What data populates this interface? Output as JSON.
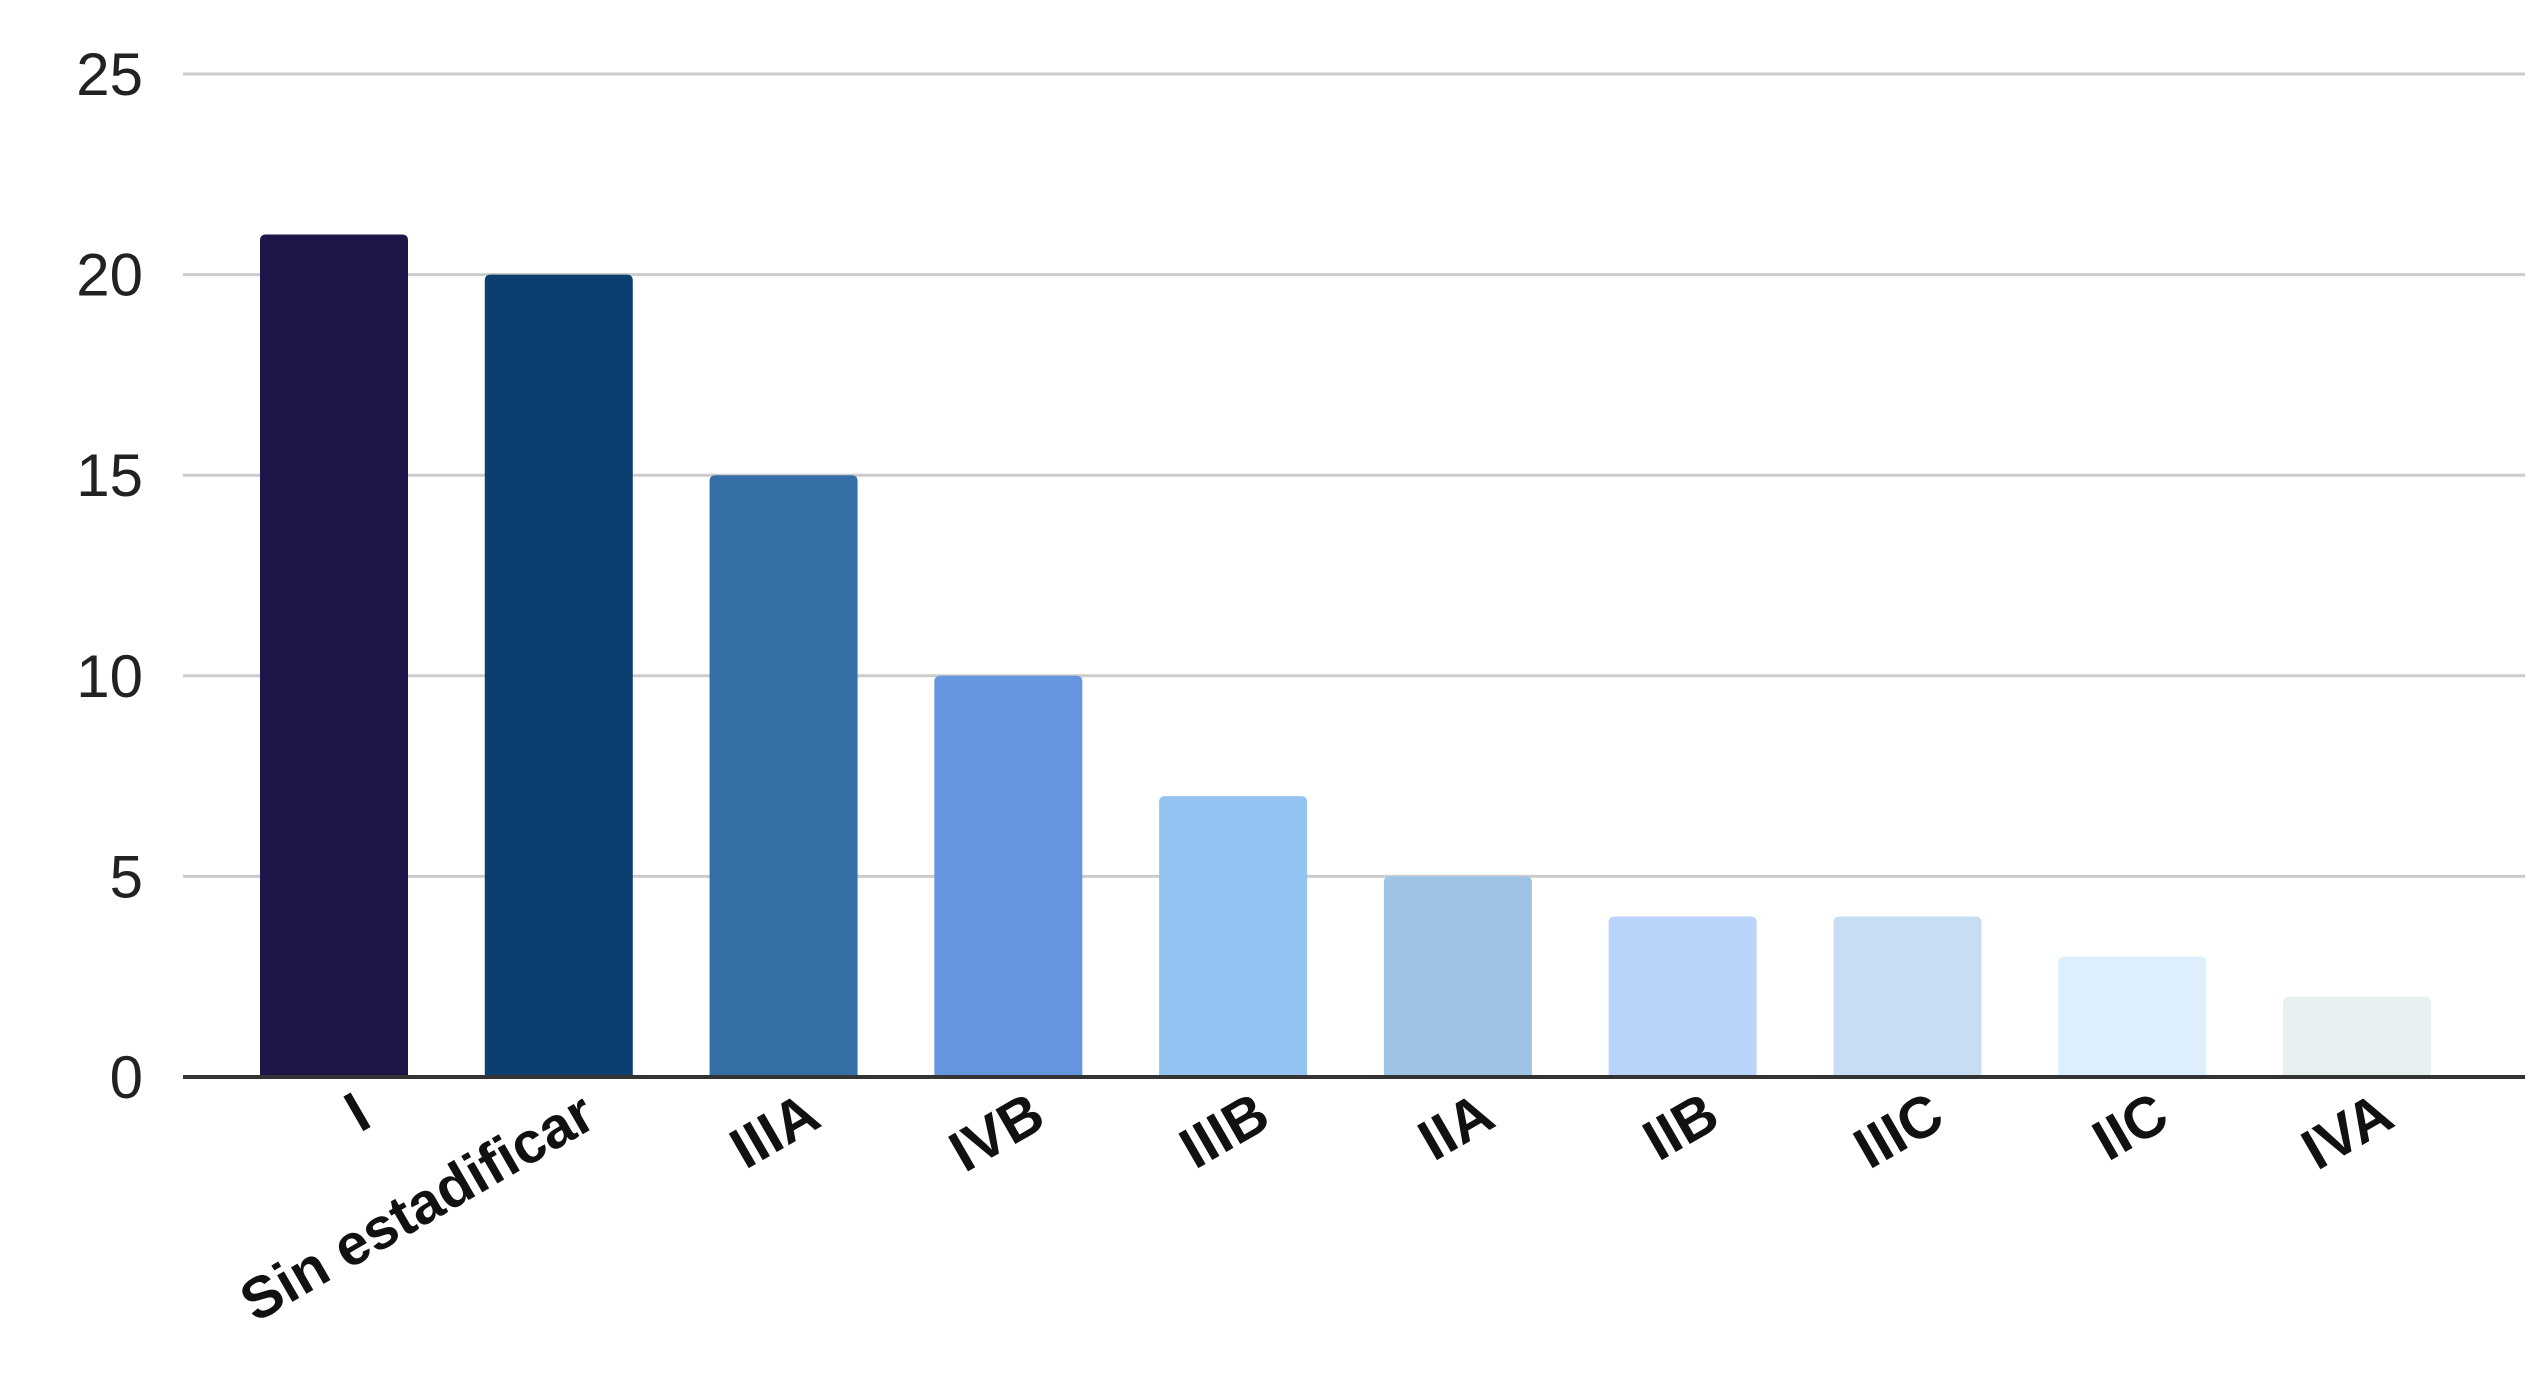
{
  "chart_data": {
    "type": "bar",
    "categories": [
      "I",
      "Sin estadificar",
      "IIIA",
      "IVB",
      "IIIB",
      "IIA",
      "IIB",
      "IIIC",
      "IIC",
      "IVA"
    ],
    "values": [
      21,
      20,
      15,
      10,
      7,
      5,
      4,
      4,
      3,
      2
    ],
    "colors": [
      "#201548",
      "#0c3f70",
      "#356fa6",
      "#6595de",
      "#94c3f2",
      "#9dc4e4",
      "#b8d4fb",
      "#c7ddf1",
      "#ddeefc",
      "#e8eff0"
    ],
    "ylim": [
      0,
      25
    ],
    "yticks": [
      0,
      5,
      10,
      15,
      20,
      25
    ],
    "grid": true,
    "title": "",
    "xlabel": "",
    "ylabel": ""
  }
}
